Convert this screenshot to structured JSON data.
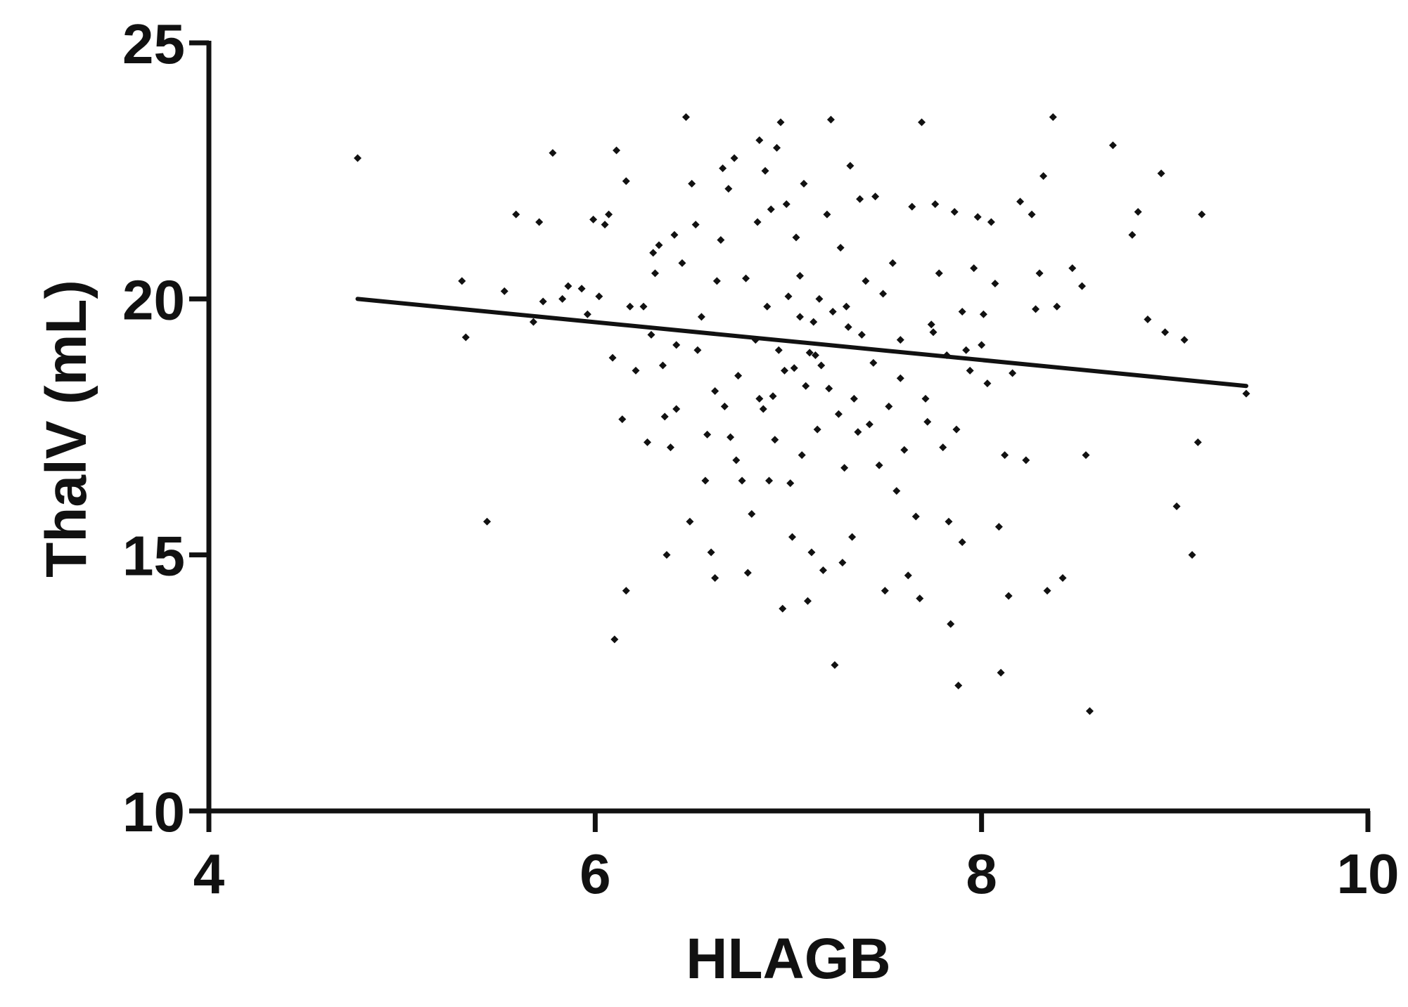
{
  "chart_data": {
    "type": "scatter",
    "title": "",
    "xlabel": "HLAGB",
    "ylabel": "ThalV (mL)",
    "xlim": [
      4,
      10
    ],
    "ylim": [
      10,
      25
    ],
    "x_ticks": [
      4,
      6,
      8,
      10
    ],
    "y_ticks": [
      10,
      15,
      20,
      25
    ],
    "grid": false,
    "legend": "none",
    "colors": {
      "points": "#111111",
      "axes": "#111111",
      "fit": "#111111",
      "background": "#ffffff"
    },
    "fit_line": {
      "x": [
        4.77,
        9.37
      ],
      "y": [
        20.0,
        18.3
      ]
    },
    "points": [
      [
        4.77,
        22.75
      ],
      [
        5.31,
        20.35
      ],
      [
        5.33,
        19.25
      ],
      [
        5.44,
        15.65
      ],
      [
        5.53,
        20.15
      ],
      [
        5.59,
        21.65
      ],
      [
        5.68,
        19.55
      ],
      [
        5.71,
        21.5
      ],
      [
        5.73,
        19.95
      ],
      [
        5.78,
        22.85
      ],
      [
        5.83,
        20.0
      ],
      [
        5.86,
        20.25
      ],
      [
        5.93,
        20.2
      ],
      [
        5.96,
        19.7
      ],
      [
        5.99,
        21.55
      ],
      [
        6.02,
        20.05
      ],
      [
        6.05,
        21.45
      ],
      [
        6.07,
        21.65
      ],
      [
        6.09,
        18.85
      ],
      [
        6.1,
        13.35
      ],
      [
        6.11,
        22.9
      ],
      [
        6.14,
        17.65
      ],
      [
        6.16,
        14.3
      ],
      [
        6.16,
        22.3
      ],
      [
        6.18,
        19.85
      ],
      [
        6.21,
        18.6
      ],
      [
        6.25,
        19.85
      ],
      [
        6.27,
        17.2
      ],
      [
        6.29,
        19.3
      ],
      [
        6.3,
        20.9
      ],
      [
        6.31,
        20.5
      ],
      [
        6.33,
        21.05
      ],
      [
        6.35,
        18.7
      ],
      [
        6.36,
        17.7
      ],
      [
        6.37,
        15.0
      ],
      [
        6.39,
        17.1
      ],
      [
        6.41,
        21.25
      ],
      [
        6.42,
        17.85
      ],
      [
        6.45,
        20.7
      ],
      [
        6.47,
        23.55
      ],
      [
        6.49,
        15.65
      ],
      [
        6.5,
        22.25
      ],
      [
        6.52,
        21.45
      ],
      [
        6.53,
        19.0
      ],
      [
        6.55,
        19.65
      ],
      [
        6.57,
        16.45
      ],
      [
        6.58,
        17.35
      ],
      [
        6.6,
        15.05
      ],
      [
        6.62,
        14.55
      ],
      [
        6.63,
        20.35
      ],
      [
        6.65,
        21.15
      ],
      [
        6.66,
        22.55
      ],
      [
        6.67,
        17.9
      ],
      [
        6.69,
        22.15
      ],
      [
        6.7,
        17.3
      ],
      [
        6.72,
        22.75
      ],
      [
        6.73,
        16.85
      ],
      [
        6.74,
        18.5
      ],
      [
        6.76,
        16.45
      ],
      [
        6.78,
        20.4
      ],
      [
        6.79,
        14.65
      ],
      [
        6.81,
        15.8
      ],
      [
        6.83,
        19.2
      ],
      [
        6.84,
        21.5
      ],
      [
        6.85,
        23.1
      ],
      [
        6.87,
        17.85
      ],
      [
        6.88,
        22.5
      ],
      [
        6.89,
        19.85
      ],
      [
        6.9,
        16.45
      ],
      [
        6.91,
        21.75
      ],
      [
        6.92,
        18.1
      ],
      [
        6.93,
        17.25
      ],
      [
        6.94,
        22.95
      ],
      [
        6.96,
        23.45
      ],
      [
        6.97,
        13.95
      ],
      [
        6.98,
        18.6
      ],
      [
        6.99,
        21.85
      ],
      [
        7.0,
        20.05
      ],
      [
        7.01,
        16.4
      ],
      [
        7.02,
        15.35
      ],
      [
        7.03,
        18.65
      ],
      [
        7.04,
        21.2
      ],
      [
        7.06,
        20.45
      ],
      [
        7.07,
        16.95
      ],
      [
        7.08,
        22.25
      ],
      [
        7.09,
        18.3
      ],
      [
        7.1,
        14.1
      ],
      [
        7.12,
        15.05
      ],
      [
        7.13,
        19.55
      ],
      [
        7.14,
        18.9
      ],
      [
        7.15,
        17.45
      ],
      [
        7.16,
        20.0
      ],
      [
        7.18,
        14.7
      ],
      [
        7.2,
        21.65
      ],
      [
        7.21,
        18.25
      ],
      [
        7.22,
        23.5
      ],
      [
        7.23,
        19.75
      ],
      [
        7.24,
        12.85
      ],
      [
        7.26,
        17.75
      ],
      [
        7.27,
        21.0
      ],
      [
        7.28,
        14.85
      ],
      [
        7.29,
        16.7
      ],
      [
        7.31,
        19.45
      ],
      [
        7.32,
        22.6
      ],
      [
        7.33,
        15.35
      ],
      [
        7.34,
        18.05
      ],
      [
        7.36,
        17.4
      ],
      [
        7.37,
        21.95
      ],
      [
        7.38,
        19.3
      ],
      [
        7.4,
        20.35
      ],
      [
        7.42,
        17.55
      ],
      [
        7.44,
        18.75
      ],
      [
        7.45,
        22.0
      ],
      [
        7.47,
        16.75
      ],
      [
        7.49,
        20.1
      ],
      [
        7.5,
        14.3
      ],
      [
        7.52,
        17.9
      ],
      [
        7.54,
        20.7
      ],
      [
        7.56,
        16.25
      ],
      [
        7.58,
        19.2
      ],
      [
        7.6,
        17.05
      ],
      [
        7.62,
        14.6
      ],
      [
        7.64,
        21.8
      ],
      [
        7.66,
        15.75
      ],
      [
        7.68,
        14.15
      ],
      [
        7.69,
        23.45
      ],
      [
        7.71,
        18.05
      ],
      [
        7.72,
        17.6
      ],
      [
        7.74,
        19.5
      ],
      [
        7.76,
        21.85
      ],
      [
        7.78,
        20.5
      ],
      [
        7.8,
        17.1
      ],
      [
        7.82,
        18.9
      ],
      [
        7.83,
        15.65
      ],
      [
        7.84,
        13.65
      ],
      [
        7.86,
        21.7
      ],
      [
        7.87,
        17.45
      ],
      [
        7.88,
        12.45
      ],
      [
        7.9,
        15.25
      ],
      [
        7.92,
        19.0
      ],
      [
        7.94,
        18.6
      ],
      [
        7.96,
        20.6
      ],
      [
        7.98,
        21.6
      ],
      [
        8.01,
        19.7
      ],
      [
        8.03,
        18.35
      ],
      [
        8.05,
        21.5
      ],
      [
        8.07,
        20.3
      ],
      [
        8.09,
        15.55
      ],
      [
        8.1,
        12.7
      ],
      [
        8.12,
        16.95
      ],
      [
        8.14,
        14.2
      ],
      [
        8.16,
        18.55
      ],
      [
        8.2,
        21.9
      ],
      [
        8.23,
        16.85
      ],
      [
        8.26,
        21.65
      ],
      [
        8.28,
        19.8
      ],
      [
        8.3,
        20.5
      ],
      [
        8.32,
        22.4
      ],
      [
        8.34,
        14.3
      ],
      [
        8.37,
        23.55
      ],
      [
        8.39,
        19.85
      ],
      [
        8.42,
        14.55
      ],
      [
        8.47,
        20.6
      ],
      [
        8.52,
        20.25
      ],
      [
        8.54,
        16.95
      ],
      [
        8.56,
        11.95
      ],
      [
        8.68,
        23.0
      ],
      [
        8.78,
        21.25
      ],
      [
        8.81,
        21.7
      ],
      [
        8.86,
        19.6
      ],
      [
        8.93,
        22.45
      ],
      [
        8.95,
        19.35
      ],
      [
        9.01,
        15.95
      ],
      [
        9.05,
        19.2
      ],
      [
        9.09,
        15.0
      ],
      [
        9.12,
        17.2
      ],
      [
        9.14,
        21.65
      ],
      [
        9.37,
        18.15
      ],
      [
        6.62,
        18.2
      ],
      [
        7.11,
        18.95
      ],
      [
        7.3,
        19.85
      ],
      [
        6.95,
        19.0
      ],
      [
        7.06,
        19.65
      ],
      [
        7.17,
        18.7
      ],
      [
        6.85,
        18.05
      ],
      [
        7.58,
        18.45
      ],
      [
        7.75,
        19.35
      ],
      [
        6.42,
        19.1
      ],
      [
        7.9,
        19.75
      ],
      [
        8.0,
        19.1
      ]
    ]
  }
}
